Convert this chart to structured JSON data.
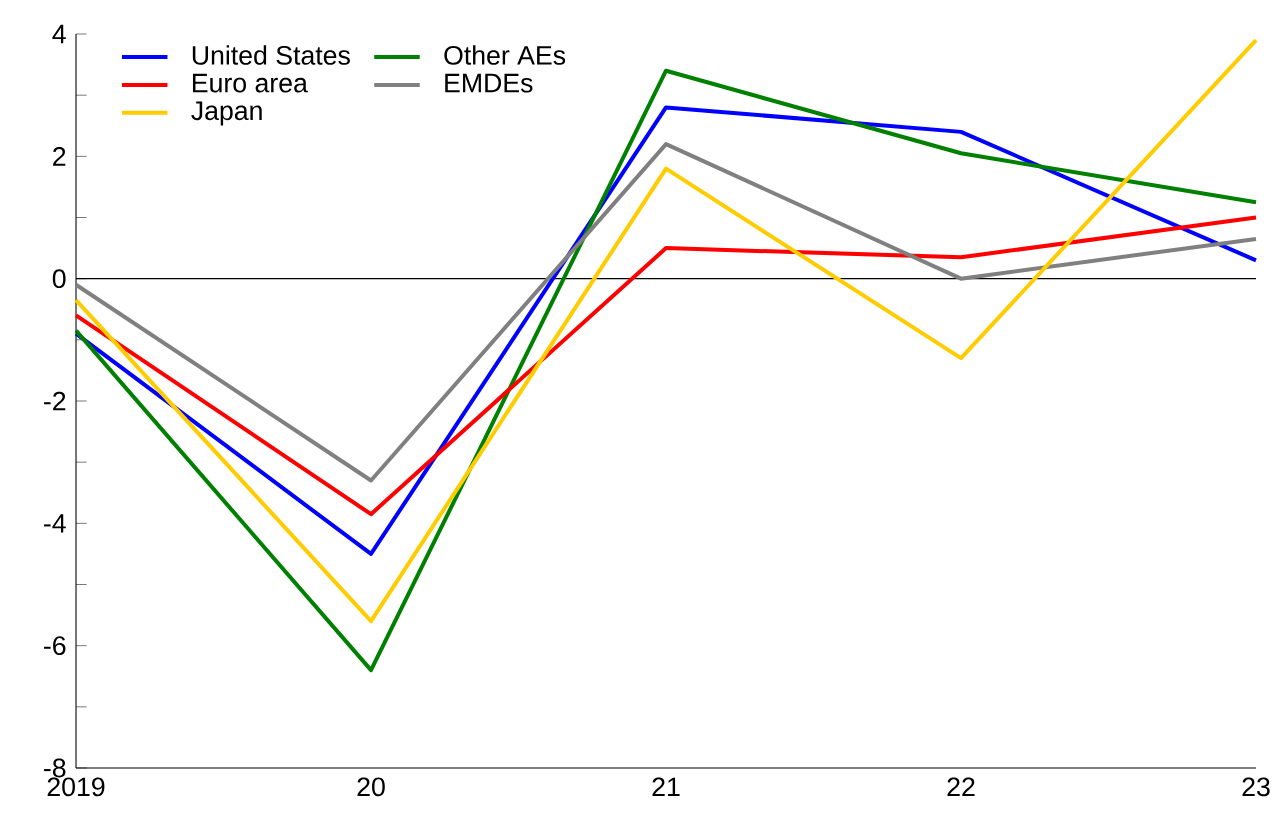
{
  "chart_data": {
    "type": "line",
    "categories": [
      "2019",
      "20",
      "21",
      "22",
      "23"
    ],
    "series": [
      {
        "name": "United States",
        "color": "#0000ff",
        "values": [
          -0.9,
          -4.5,
          2.8,
          2.4,
          0.3
        ]
      },
      {
        "name": "Other AEs",
        "color": "#008000",
        "values": [
          -0.85,
          -6.4,
          3.4,
          2.05,
          1.25
        ]
      },
      {
        "name": "Euro area",
        "color": "#ff0000",
        "values": [
          -0.6,
          -3.85,
          0.5,
          0.35,
          1.0
        ]
      },
      {
        "name": "EMDEs",
        "color": "#808080",
        "values": [
          -0.1,
          -3.3,
          2.2,
          0.0,
          0.65
        ]
      },
      {
        "name": "Japan",
        "color": "#ffcc00",
        "values": [
          -0.35,
          -5.6,
          1.8,
          -1.3,
          3.9
        ]
      }
    ],
    "ylim": [
      -8,
      4
    ],
    "yticks": [
      -8,
      {
        "value": -7,
        "label": null
      },
      -6,
      {
        "value": -5,
        "label": null
      },
      -4,
      {
        "value": -3,
        "label": null
      },
      -2,
      {
        "value": -1,
        "label": null
      },
      0,
      {
        "value": 1,
        "label": null
      },
      2,
      {
        "value": 3,
        "label": null
      },
      4
    ],
    "ref_lines": [
      {
        "axis": "y",
        "value": 0,
        "color": "#000000"
      }
    ],
    "legend": "top left",
    "line_style": "solid"
  }
}
